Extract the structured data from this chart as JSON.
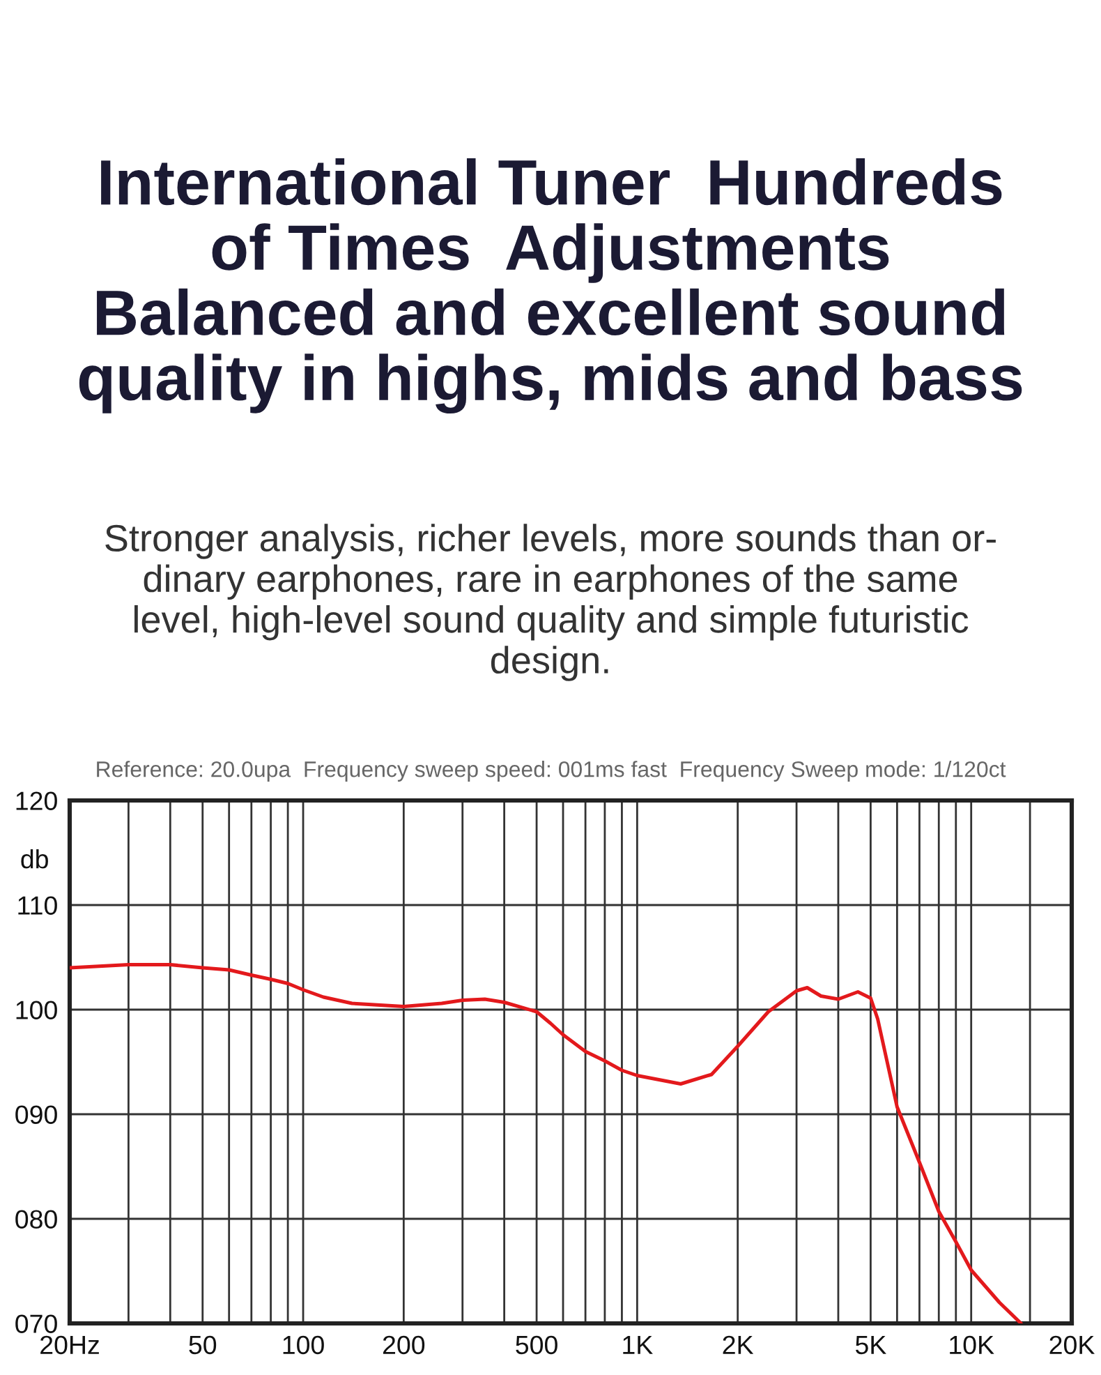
{
  "chart_data": {
    "type": "line",
    "title": "International Tuner  Hundreds\nof Times  Adjustments\nBalanced and excellent sound\nquality in highs, mids and bass",
    "subtitle": "Stronger analysis, richer levels, more sounds than or-\ndinary earphones, rare in earphones of the same\nlevel, high-level sound quality and simple futuristic\ndesign.",
    "annotations": [
      "Reference: 20.0upa  Frequency sweep speed: 001ms fast  Frequency Sweep mode: 1/120ct"
    ],
    "ylabel": "db",
    "log": "x",
    "series": [
      {
        "color": "#e3191c",
        "x": [
          20,
          30,
          40,
          50,
          60,
          70,
          80,
          90,
          100,
          115,
          140,
          200,
          260,
          300,
          350,
          400,
          500,
          550,
          600,
          700,
          800,
          900,
          1000,
          1350,
          1670,
          2000,
          2470,
          3000,
          3230,
          3550,
          4000,
          4580,
          5000,
          5250,
          6000,
          7000,
          8000,
          9000,
          10000,
          12150,
          14100
        ],
        "values": [
          104.0,
          104.3,
          104.3,
          104.0,
          103.8,
          103.3,
          102.9,
          102.5,
          101.9,
          101.2,
          100.6,
          100.3,
          100.6,
          100.9,
          101.0,
          100.7,
          99.8,
          98.7,
          97.6,
          96.0,
          95.1,
          94.2,
          93.7,
          92.9,
          93.8,
          96.5,
          99.8,
          101.8,
          102.1,
          101.3,
          101.0,
          101.7,
          101.1,
          99.1,
          90.7,
          85.4,
          80.7,
          77.8,
          75.1,
          72.0,
          70.0
        ]
      }
    ],
    "xlim": [
      20,
      20000
    ],
    "xticks": [
      {
        "value": 20,
        "label": "20Hz"
      },
      {
        "value": 30,
        "label": null
      },
      {
        "value": 40,
        "label": null
      },
      50,
      {
        "value": 60,
        "label": null
      },
      {
        "value": 70,
        "label": null
      },
      {
        "value": 80,
        "label": null
      },
      {
        "value": 90,
        "label": null
      },
      100,
      200,
      {
        "value": 300,
        "label": null
      },
      {
        "value": 400,
        "label": null
      },
      500,
      {
        "value": 600,
        "label": null
      },
      {
        "value": 700,
        "label": null
      },
      {
        "value": 800,
        "label": null
      },
      {
        "value": 900,
        "label": null
      },
      {
        "value": 1000,
        "label": "1K"
      },
      {
        "value": 2000,
        "label": "2K"
      },
      {
        "value": 3000,
        "label": null
      },
      {
        "value": 4000,
        "label": null
      },
      {
        "value": 5000,
        "label": "5K"
      },
      {
        "value": 6000,
        "label": null
      },
      {
        "value": 7000,
        "label": null
      },
      {
        "value": 8000,
        "label": null
      },
      {
        "value": 9000,
        "label": null
      },
      {
        "value": 10000,
        "label": "10K"
      },
      {
        "value": 15000,
        "label": null
      },
      {
        "value": 20000,
        "label": "20K"
      }
    ],
    "ylim": [
      70,
      120
    ],
    "yticks": [
      {
        "value": 70,
        "label": "070"
      },
      {
        "value": 80,
        "label": "080"
      },
      {
        "value": 90,
        "label": "090"
      },
      100,
      110,
      120
    ],
    "grid": true,
    "marker": "none",
    "line_style": "solid"
  }
}
